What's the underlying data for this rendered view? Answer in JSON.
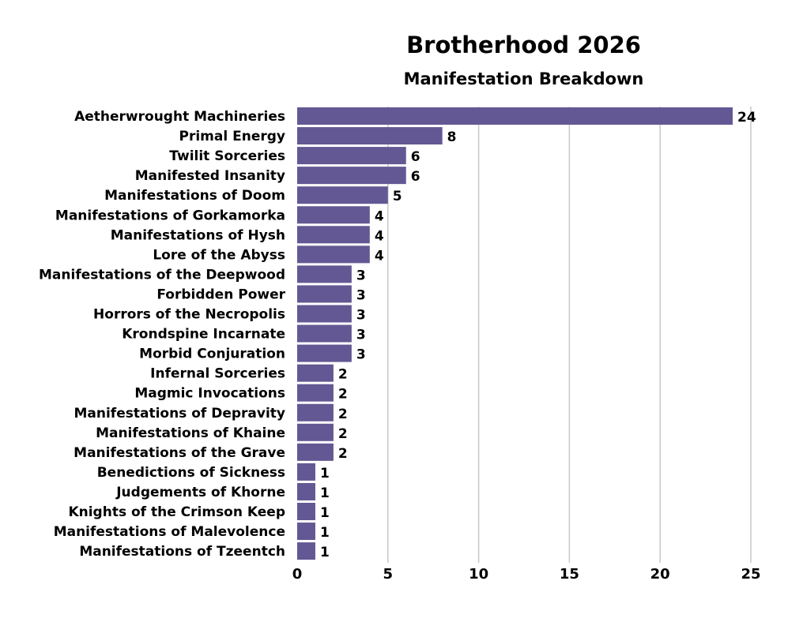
{
  "chart_data": {
    "type": "bar",
    "orientation": "horizontal",
    "title": "Brotherhood 2026",
    "subtitle": "Manifestation Breakdown",
    "categories": [
      "Aetherwrought Machineries",
      "Primal Energy",
      "Twilit Sorceries",
      "Manifested Insanity",
      "Manifestations of Doom",
      "Manifestations of Gorkamorka",
      "Manifestations of Hysh",
      "Lore of the Abyss",
      "Manifestations of the Deepwood",
      "Forbidden Power",
      "Horrors of the Necropolis",
      "Krondspine Incarnate",
      "Morbid Conjuration",
      "Infernal Sorceries",
      "Magmic Invocations",
      "Manifestations of Depravity",
      "Manifestations of Khaine",
      "Manifestations of the Grave",
      "Benedictions of Sickness",
      "Judgements of Khorne",
      "Knights of the Crimson Keep",
      "Manifestations of Malevolence",
      "Manifestations of Tzeentch"
    ],
    "values": [
      24,
      8,
      6,
      6,
      5,
      4,
      4,
      4,
      3,
      3,
      3,
      3,
      3,
      2,
      2,
      2,
      2,
      2,
      1,
      1,
      1,
      1,
      1
    ],
    "xlim": [
      0,
      25
    ],
    "xticks": [
      0,
      5,
      10,
      15,
      20,
      25
    ],
    "grid": true,
    "data_labels": true,
    "bar_color": "#635893"
  }
}
